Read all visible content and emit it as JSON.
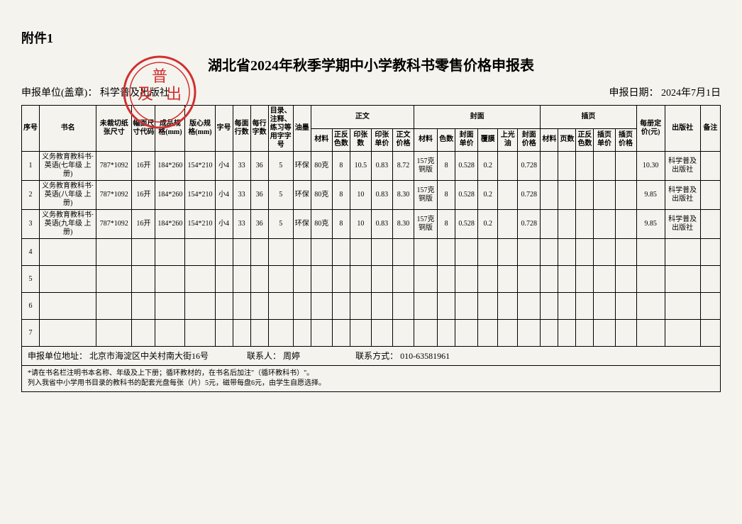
{
  "attachment": "附件1",
  "title": "湖北省2024年秋季学期中小学教科书零售价格申报表",
  "unit_label": "申报单位(盖章)：",
  "unit_value": "科学普及出版社",
  "date_label": "申报日期：",
  "date_value": "2024年7月1日",
  "headers": {
    "xuhao": "序号",
    "shuming": "书名",
    "weicaiqie": "未裁切纸张尺寸",
    "fumian": "幅面尺寸代码",
    "chengpin": "成品规格(mm)",
    "banxin": "版心规格(mm)",
    "zihao": "字号",
    "meimianhang": "每面行数",
    "meihangzi": "每行字数",
    "mulu": "目录、注释、练习等用字字号",
    "youmo": "油墨",
    "zhengwen": "正文",
    "fengmian": "封面",
    "chaye": "插页",
    "meice": "每册定价(元)",
    "chubanshe": "出版社",
    "beizhu": "备注",
    "cailiao": "材料",
    "zhengfan": "正反色数",
    "yinzhangshu": "印张数",
    "yinzhangdj": "印张单价",
    "zhengwenjg": "正文价格",
    "seshu": "色数",
    "fmdj": "封面单价",
    "fumo": "覆膜",
    "shangguang": "上光油",
    "fmjg": "封面价格",
    "yeshu": "页数",
    "chayedj": "插页单价",
    "chayejg": "插页价格"
  },
  "rows": [
    {
      "n": "1",
      "name": "义务教育教科书·英语(七年级 上册)",
      "size": "787*1092",
      "fmt": "16开",
      "cp": "184*260",
      "bx": "154*210",
      "zh": "小4",
      "mh": "33",
      "mz": "36",
      "ml": "5",
      "ym": "环保",
      "zw_cl": "80克",
      "zw_se": "8",
      "yz": "10.5",
      "yzdj": "0.83",
      "zwjg": "8.72",
      "fm_cl": "157克铜版",
      "fm_se": "8",
      "fmdj": "0.528",
      "fumo": "0.2",
      "sgy": "",
      "fmjg": "0.728",
      "cy_cl": "",
      "cy_ys": "",
      "cy_se": "",
      "cy_dj": "",
      "cy_jg": "",
      "price": "10.30",
      "pub": "科学普及出版社"
    },
    {
      "n": "2",
      "name": "义务教育教科书·英语(八年级 上册)",
      "size": "787*1092",
      "fmt": "16开",
      "cp": "184*260",
      "bx": "154*210",
      "zh": "小4",
      "mh": "33",
      "mz": "36",
      "ml": "5",
      "ym": "环保",
      "zw_cl": "80克",
      "zw_se": "8",
      "yz": "10",
      "yzdj": "0.83",
      "zwjg": "8.30",
      "fm_cl": "157克铜版",
      "fm_se": "8",
      "fmdj": "0.528",
      "fumo": "0.2",
      "sgy": "",
      "fmjg": "0.728",
      "cy_cl": "",
      "cy_ys": "",
      "cy_se": "",
      "cy_dj": "",
      "cy_jg": "",
      "price": "9.85",
      "pub": "科学普及出版社"
    },
    {
      "n": "3",
      "name": "义务教育教科书·英语(九年级 上册)",
      "size": "787*1092",
      "fmt": "16开",
      "cp": "184*260",
      "bx": "154*210",
      "zh": "小4",
      "mh": "33",
      "mz": "36",
      "ml": "5",
      "ym": "环保",
      "zw_cl": "80克",
      "zw_se": "8",
      "yz": "10",
      "yzdj": "0.83",
      "zwjg": "8.30",
      "fm_cl": "157克铜版",
      "fm_se": "8",
      "fmdj": "0.528",
      "fumo": "0.2",
      "sgy": "",
      "fmjg": "0.728",
      "cy_cl": "",
      "cy_ys": "",
      "cy_se": "",
      "cy_dj": "",
      "cy_jg": "",
      "price": "9.85",
      "pub": "科学普及出版社"
    },
    {
      "n": "4"
    },
    {
      "n": "5"
    },
    {
      "n": "6"
    },
    {
      "n": "7"
    }
  ],
  "footer": {
    "addr_label": "申报单位地址：",
    "addr_value": "北京市海淀区中关村南大街16号",
    "contact_label": "联系人：",
    "contact_value": "周婷",
    "phone_label": "联系方式：",
    "phone_value": "010-63581961"
  },
  "note1": "*请在书名栏注明书本名称、年级及上下册；循环教材的，在书名后加注\"（循环教科书）\"。",
  "note2": "列入我省中小学用书目录的教科书的配套光盘每张（片）5元，磁带每盘6元，由学生自愿选择。",
  "stamp_color": "#d03030",
  "layout": {
    "col_widths_pct": [
      2.5,
      8,
      5,
      3.3,
      4.2,
      4.2,
      2.5,
      2.5,
      2.5,
      3.5,
      2.5,
      3,
      2.5,
      3,
      3,
      3,
      3.3,
      2.5,
      3.2,
      2.8,
      2.8,
      3.2,
      2.5,
      2.5,
      2.5,
      3,
      3,
      4,
      5,
      2.8
    ]
  }
}
